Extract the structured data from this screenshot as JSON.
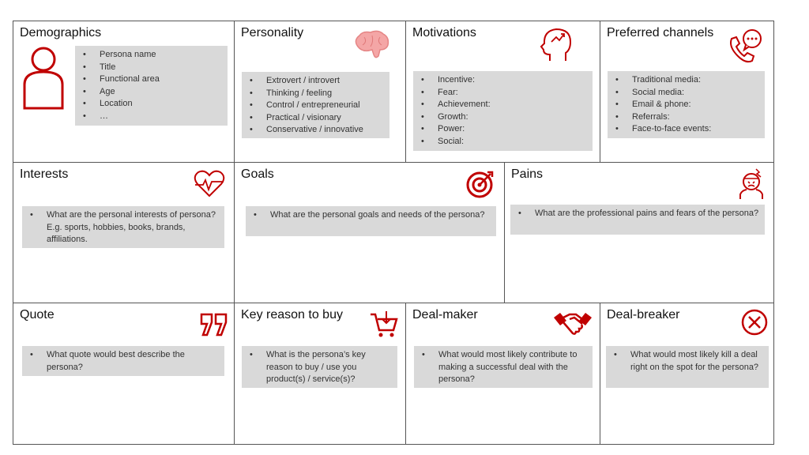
{
  "accent_color": "#c00000",
  "cells": {
    "demographics": {
      "title": "Demographics",
      "icon": "person-icon",
      "items": [
        "Persona name",
        "Title",
        "Functional area",
        "Age",
        "Location",
        "…"
      ]
    },
    "personality": {
      "title": "Personality",
      "icon": "brain-icon",
      "items": [
        "Extrovert / introvert",
        "Thinking / feeling",
        "Control / entrepreneurial",
        "Practical / visionary",
        "Conservative / innovative"
      ]
    },
    "motivations": {
      "title": "Motivations",
      "icon": "head-growth-icon",
      "items": [
        "Incentive:",
        "Fear:",
        "Achievement:",
        "Growth:",
        "Power:",
        "Social:"
      ]
    },
    "channels": {
      "title": "Preferred channels",
      "icon": "phone-chat-icon",
      "items": [
        "Traditional media:",
        "Social media:",
        "Email & phone:",
        "Referrals:",
        "Face-to-face events:"
      ]
    },
    "interests": {
      "title": "Interests",
      "icon": "heartbeat-icon",
      "items": [
        "What are the personal interests of persona? E.g. sports, hobbies, books, brands, affiliations."
      ]
    },
    "goals": {
      "title": "Goals",
      "icon": "target-icon",
      "items": [
        "What are the personal goals and needs of the persona?"
      ]
    },
    "pains": {
      "title": "Pains",
      "icon": "stressed-person-icon",
      "items": [
        "What are the professional pains and fears of the persona?"
      ]
    },
    "quote": {
      "title": "Quote",
      "icon": "quote-icon",
      "items": [
        "What quote would best describe the persona?"
      ]
    },
    "reason": {
      "title": "Key reason to buy",
      "icon": "cart-icon",
      "items": [
        "What is the persona’s key reason to buy / use you product(s) / service(s)?"
      ]
    },
    "dealmaker": {
      "title": "Deal-maker",
      "icon": "handshake-icon",
      "items": [
        "What would most likely contribute to making a successful deal with the persona?"
      ]
    },
    "dealbreaker": {
      "title": "Deal-breaker",
      "icon": "close-circle-icon",
      "items": [
        "What would most likely kill a deal right on the spot for the persona?"
      ]
    }
  }
}
